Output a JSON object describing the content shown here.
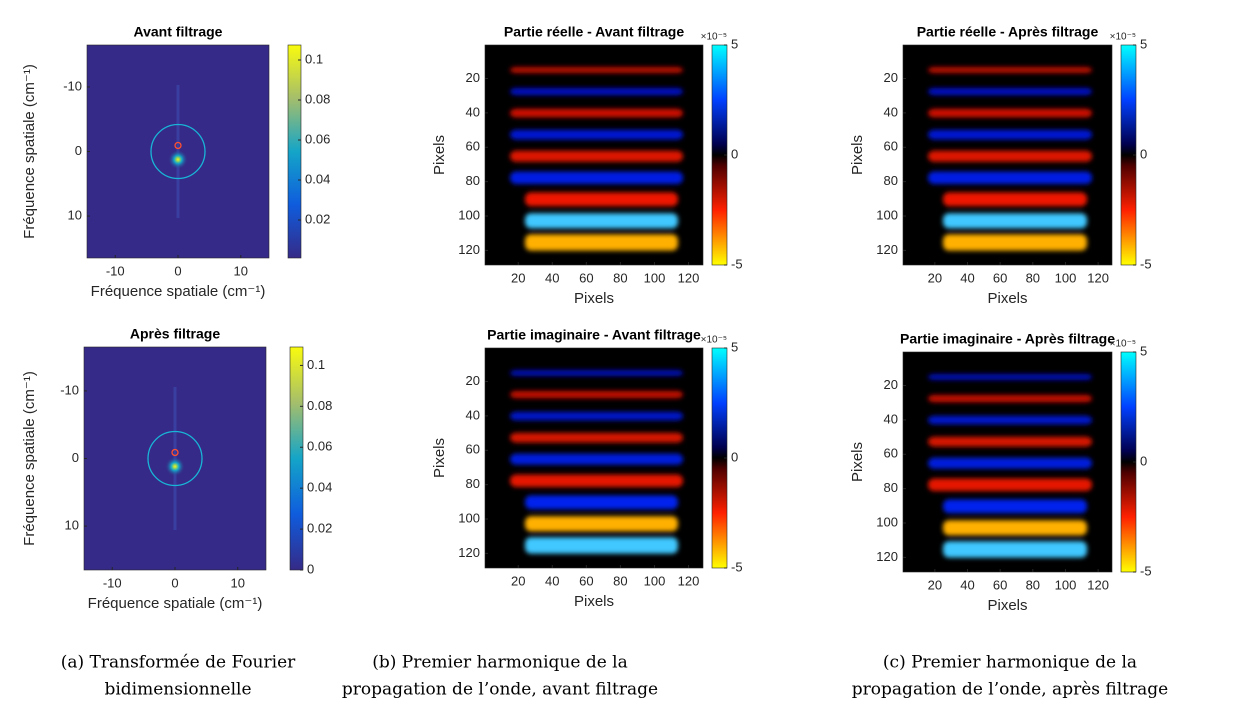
{
  "panels": [
    {
      "title": "Avant filtrage",
      "xlabel": "Fréquence spatiale (cm⁻¹)",
      "ylabel": "Fréquence spatiale (cm⁻¹)",
      "xlim": [
        -14.5,
        14.5
      ],
      "ylim": [
        -16.5,
        16.5
      ],
      "xticks": [
        -10,
        0,
        10
      ],
      "yticks": [
        -10,
        0,
        10
      ],
      "clim": [
        0.001,
        0.1075
      ],
      "cticks": [
        0.02,
        0.04,
        0.06,
        0.08,
        0.1
      ]
    },
    {
      "title": "Après filtrage",
      "xlabel": "Fréquence spatiale (cm⁻¹)",
      "ylabel": "Fréquence spatiale (cm⁻¹)",
      "xlim": [
        -14.5,
        14.5
      ],
      "ylim": [
        -16.5,
        16.5
      ],
      "xticks": [
        -10,
        0,
        10
      ],
      "yticks": [
        -10,
        0,
        10
      ],
      "clim": [
        0,
        0.109
      ],
      "cticks": [
        0,
        0.02,
        0.04,
        0.06,
        0.08,
        0.1
      ]
    },
    {
      "title": "Partie réelle - Avant filtrage",
      "xlabel": "Pixels",
      "ylabel": "Pixels",
      "xlim": [
        0.5,
        128.5
      ],
      "ylim": [
        0.5,
        128.5
      ],
      "xticks": [
        20,
        40,
        60,
        80,
        100,
        120
      ],
      "yticks": [
        20,
        40,
        60,
        80,
        100,
        120
      ],
      "clim": [
        -5,
        5
      ],
      "cticks": [
        -5,
        0,
        5
      ],
      "cexp": "×10⁻⁵"
    },
    {
      "title": "Partie imaginaire - Avant filtrage",
      "xlabel": "Pixels",
      "ylabel": "Pixels",
      "xlim": [
        0.5,
        128.5
      ],
      "ylim": [
        0.5,
        128.5
      ],
      "xticks": [
        20,
        40,
        60,
        80,
        100,
        120
      ],
      "yticks": [
        20,
        40,
        60,
        80,
        100,
        120
      ],
      "clim": [
        -5,
        5
      ],
      "cticks": [
        -5,
        0,
        5
      ],
      "cexp": "×10⁻⁵"
    },
    {
      "title": "Partie réelle - Après filtrage",
      "xlabel": "Pixels",
      "ylabel": "Pixels",
      "xlim": [
        0.5,
        128.5
      ],
      "ylim": [
        0.5,
        128.5
      ],
      "xticks": [
        20,
        40,
        60,
        80,
        100,
        120
      ],
      "yticks": [
        20,
        40,
        60,
        80,
        100,
        120
      ],
      "clim": [
        -5,
        5
      ],
      "cticks": [
        -5,
        0,
        5
      ],
      "cexp": "×10⁻⁵"
    },
    {
      "title": "Partie imaginaire - Après filtrage",
      "xlabel": "Pixels",
      "ylabel": "Pixels",
      "xlim": [
        0.5,
        128.5
      ],
      "ylim": [
        0.5,
        128.5
      ],
      "xticks": [
        20,
        40,
        60,
        80,
        100,
        120
      ],
      "yticks": [
        20,
        40,
        60,
        80,
        100,
        120
      ],
      "clim": [
        -5,
        5
      ],
      "cticks": [
        -5,
        0,
        5
      ],
      "cexp": "×10⁻⁵"
    }
  ],
  "captions": [
    [
      "(a) Transformée de Fourier",
      "bidimensionnelle"
    ],
    [
      "(b) Premier harmonique de la",
      "propagation de l’onde, avant filtrage"
    ],
    [
      "(c) Premier harmonique de la",
      "propagation de l’onde, après filtrage"
    ]
  ]
}
